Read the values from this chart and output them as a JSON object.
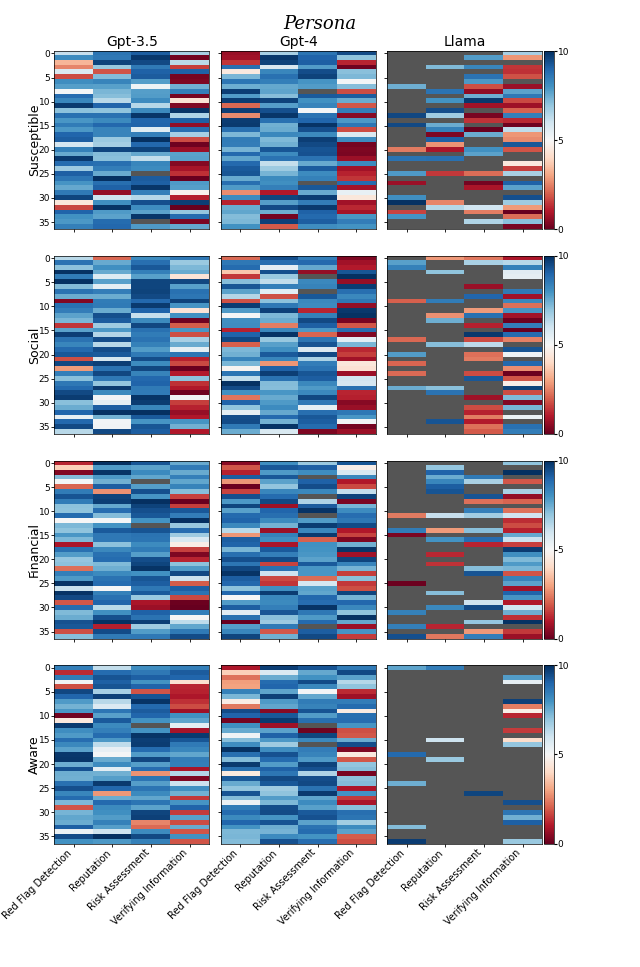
{
  "title": "Persona",
  "row_labels": [
    "Susceptible",
    "Social",
    "Financial",
    "Aware"
  ],
  "col_labels": [
    "Gpt-3.5",
    "Gpt-4",
    "Llama"
  ],
  "x_labels": [
    "Red Flag Detection",
    "Reputation",
    "Risk Assessment",
    "Verifying Information"
  ],
  "n_rows": 37,
  "n_cols": 4,
  "vmin": 0,
  "vmax": 10,
  "colormap": "RdBu",
  "figsize": [
    6.4,
    9.67
  ],
  "dpi": 100,
  "yticks": [
    0,
    5,
    10,
    15,
    20,
    25,
    30,
    35
  ],
  "gray_color": "#555555",
  "title_fontsize": 13,
  "label_fontsize": 9,
  "tick_fontsize": 6.5,
  "xtick_fontsize": 7
}
